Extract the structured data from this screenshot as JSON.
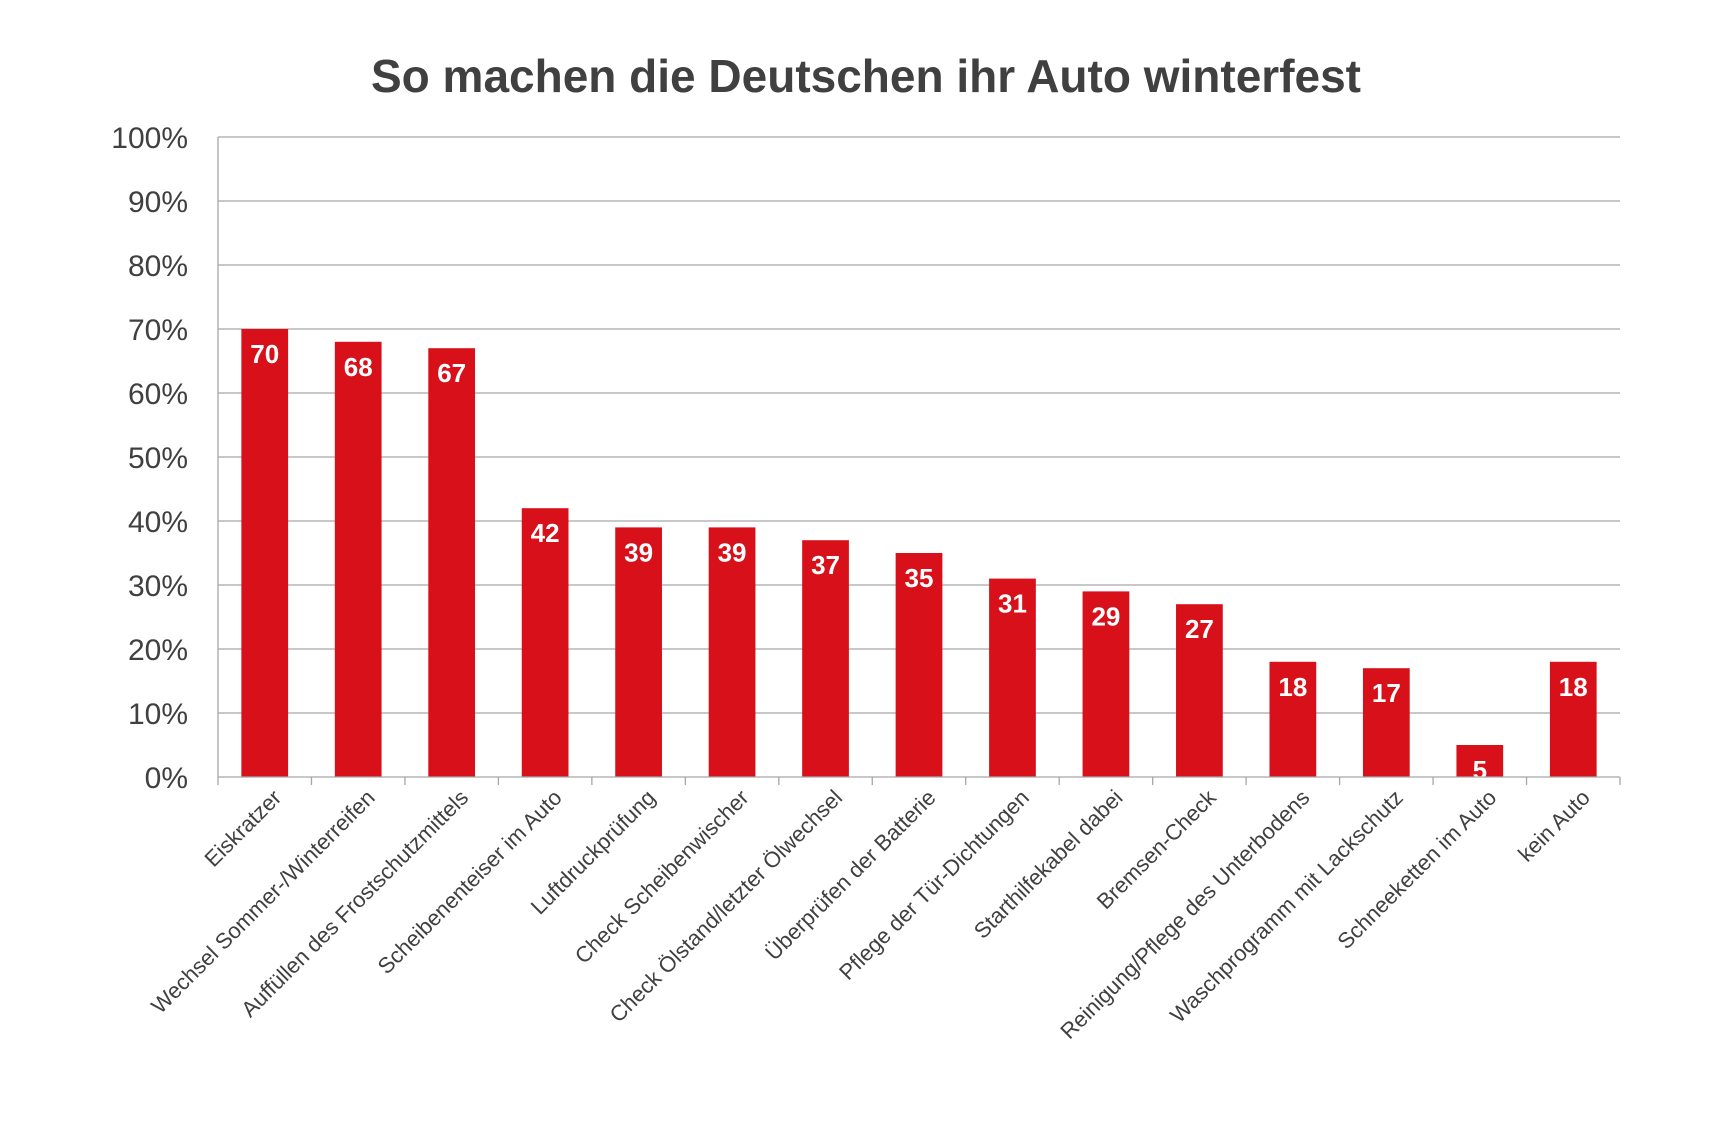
{
  "chart_data": {
    "type": "bar",
    "title": "So machen die Deutschen ihr Auto winterfest",
    "xlabel": "",
    "ylabel": "",
    "ylim": [
      0,
      100
    ],
    "yticks": [
      "0%",
      "10%",
      "20%",
      "30%",
      "40%",
      "50%",
      "60%",
      "70%",
      "80%",
      "90%",
      "100%"
    ],
    "grid": true,
    "legend": "none",
    "bar_color": "#d7101a",
    "categories": [
      "Eiskratzer",
      "Wechsel Sommer-/Winterreifen",
      "Auffüllen des Frostschutzmittels",
      "Scheibenenteiser im Auto",
      "Luftdruckprüfung",
      "Check Scheibenwischer",
      "Check Ölstand/letzter Ölwechsel",
      "Überprüfen der Batterie",
      "Pflege der Tür-Dichtungen",
      "Starthilfekabel dabei",
      "Bremsen-Check",
      "Reinigung/Pflege des Unterbodens",
      "Waschprogramm mit Lackschutz",
      "Schneeketten im Auto",
      "kein Auto"
    ],
    "values": [
      70,
      68,
      67,
      42,
      39,
      39,
      37,
      35,
      31,
      29,
      27,
      18,
      17,
      5,
      18
    ],
    "data_labels": [
      "70",
      "68",
      "67",
      "42",
      "39",
      "39",
      "37",
      "35",
      "31",
      "29",
      "27",
      "18",
      "17",
      "5",
      "18"
    ]
  }
}
